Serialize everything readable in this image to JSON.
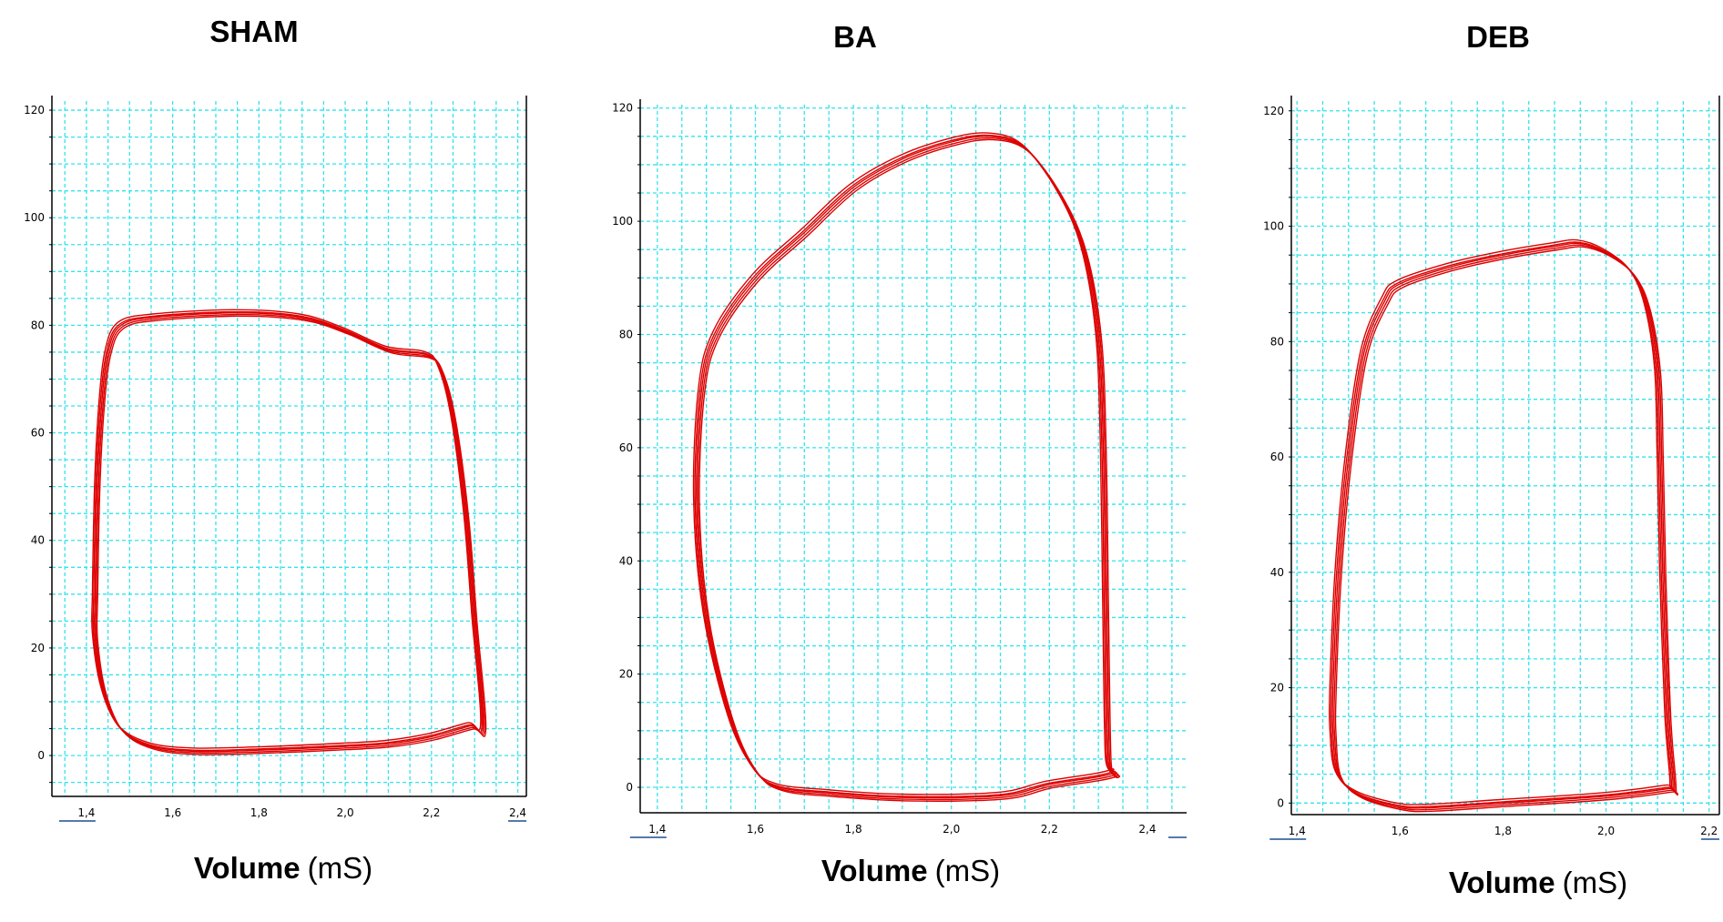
{
  "chart_data": [
    {
      "type": "line",
      "title": "SHAM",
      "xlabel_bold": "Volume",
      "xlabel_unit": "(mS)",
      "ylabel": "",
      "xlim": [
        1.32,
        2.42
      ],
      "ylim": [
        -7.6,
        121.7
      ],
      "x_ticks": [
        "1,4",
        "1,6",
        "1,8",
        "2,0",
        "2,2",
        "2,4"
      ],
      "x_tick_values": [
        1.4,
        1.6,
        1.8,
        2.0,
        2.2,
        2.4
      ],
      "y_ticks": [
        0,
        20,
        40,
        60,
        80,
        100,
        120
      ],
      "grid": true,
      "grid_color": "#33e3ec",
      "series_color": "#dd0000",
      "loop": [
        [
          1.42,
          30
        ],
        [
          1.425,
          50
        ],
        [
          1.435,
          65
        ],
        [
          1.45,
          75
        ],
        [
          1.48,
          80
        ],
        [
          1.56,
          81.5
        ],
        [
          1.75,
          82.3
        ],
        [
          1.9,
          81.5
        ],
        [
          2.0,
          79
        ],
        [
          2.1,
          75.5
        ],
        [
          2.19,
          74.5
        ],
        [
          2.22,
          72
        ],
        [
          2.25,
          63
        ],
        [
          2.28,
          45
        ],
        [
          2.3,
          25
        ],
        [
          2.32,
          5.5
        ],
        [
          2.29,
          5.5
        ],
        [
          2.2,
          3.5
        ],
        [
          2.1,
          2.2
        ],
        [
          2.0,
          1.7
        ],
        [
          1.8,
          1.0
        ],
        [
          1.65,
          0.8
        ],
        [
          1.55,
          1.8
        ],
        [
          1.48,
          5
        ],
        [
          1.44,
          12
        ],
        [
          1.42,
          22
        ]
      ]
    },
    {
      "type": "line",
      "title": "BA",
      "xlabel_bold": "Volume",
      "xlabel_unit": "(mS)",
      "ylabel": "",
      "xlim": [
        1.365,
        2.48
      ],
      "ylim": [
        -4.5,
        120.6
      ],
      "x_ticks": [
        "1,4",
        "1,6",
        "1,8",
        "2,0",
        "2,2",
        "2,4"
      ],
      "x_tick_values": [
        1.4,
        1.6,
        1.8,
        2.0,
        2.2,
        2.4
      ],
      "y_ticks": [
        0,
        20,
        40,
        60,
        80,
        100,
        120
      ],
      "grid": true,
      "grid_color": "#33e3ec",
      "series_color": "#dd0000",
      "loop": [
        [
          1.48,
          50
        ],
        [
          1.49,
          70
        ],
        [
          1.52,
          80
        ],
        [
          1.6,
          90
        ],
        [
          1.7,
          98
        ],
        [
          1.8,
          106
        ],
        [
          1.9,
          111
        ],
        [
          2.0,
          114
        ],
        [
          2.08,
          115
        ],
        [
          2.15,
          113
        ],
        [
          2.22,
          105
        ],
        [
          2.27,
          95
        ],
        [
          2.3,
          80
        ],
        [
          2.31,
          60
        ],
        [
          2.315,
          30
        ],
        [
          2.32,
          5
        ],
        [
          2.33,
          2.5
        ],
        [
          2.2,
          0.5
        ],
        [
          2.1,
          -1.5
        ],
        [
          1.9,
          -1.8
        ],
        [
          1.75,
          -1
        ],
        [
          1.65,
          0
        ],
        [
          1.6,
          3
        ],
        [
          1.55,
          12
        ],
        [
          1.5,
          30
        ]
      ]
    },
    {
      "type": "line",
      "title": "DEB",
      "xlabel_bold": "Volume",
      "xlabel_unit": "(mS)",
      "ylabel": "",
      "xlim": [
        1.389,
        2.22
      ],
      "ylim": [
        -2,
        121.7
      ],
      "x_ticks": [
        "1,4",
        "1,6",
        "1,8",
        "2,0",
        "2,2"
      ],
      "x_tick_values": [
        1.4,
        1.6,
        1.8,
        2.0,
        2.2
      ],
      "y_ticks": [
        0,
        20,
        40,
        60,
        80,
        100,
        120
      ],
      "grid": true,
      "grid_color": "#33e3ec",
      "series_color": "#dd0000",
      "loop": [
        [
          1.47,
          20
        ],
        [
          1.48,
          40
        ],
        [
          1.5,
          60
        ],
        [
          1.53,
          78
        ],
        [
          1.57,
          87
        ],
        [
          1.6,
          90
        ],
        [
          1.7,
          93
        ],
        [
          1.8,
          95
        ],
        [
          1.9,
          96.5
        ],
        [
          1.95,
          97
        ],
        [
          2.0,
          95.5
        ],
        [
          2.05,
          92
        ],
        [
          2.08,
          86
        ],
        [
          2.1,
          75
        ],
        [
          2.105,
          60
        ],
        [
          2.11,
          40
        ],
        [
          2.12,
          15
        ],
        [
          2.13,
          3
        ],
        [
          2.12,
          2.5
        ],
        [
          2.0,
          1.2
        ],
        [
          1.8,
          0
        ],
        [
          1.66,
          -0.8
        ],
        [
          1.6,
          -0.6
        ],
        [
          1.52,
          1.5
        ],
        [
          1.48,
          5
        ],
        [
          1.47,
          12
        ]
      ]
    }
  ]
}
